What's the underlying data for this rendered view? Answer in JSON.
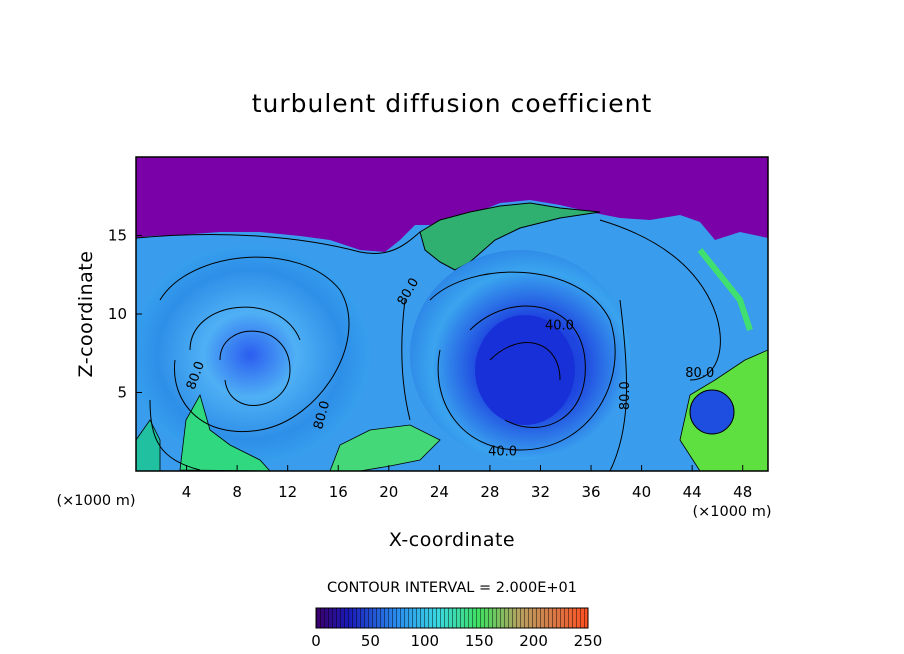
{
  "chart_data": {
    "type": "heatmap",
    "title": "turbulent diffusion coefficient",
    "xlabel": "X-coordinate",
    "ylabel": "Z-coordinate",
    "x_unit": "(×1000 m)",
    "y_unit": "(×1000 m)",
    "x_ticks": [
      "4",
      "8",
      "12",
      "16",
      "20",
      "24",
      "28",
      "32",
      "36",
      "40",
      "44",
      "48"
    ],
    "y_ticks": [
      "5",
      "10",
      "15"
    ],
    "xlim": [
      0,
      50
    ],
    "ylim": [
      0,
      20
    ],
    "contour_interval_text": "CONTOUR INTERVAL = 2.000E+01",
    "contour_labels": [
      {
        "text": "80.0",
        "x": 5.0,
        "z": 6.0,
        "rotate": -70
      },
      {
        "text": "80.0",
        "x": 15.0,
        "z": 3.5,
        "rotate": -75
      },
      {
        "text": "80.0",
        "x": 21.8,
        "z": 11.3,
        "rotate": -60
      },
      {
        "text": "40.0",
        "x": 33.5,
        "z": 9.0,
        "rotate": 0
      },
      {
        "text": "80.0",
        "x": 39.0,
        "z": 4.8,
        "rotate": -90
      },
      {
        "text": "80.0",
        "x": 44.6,
        "z": 6.0,
        "rotate": 0
      },
      {
        "text": "40.0",
        "x": 29.0,
        "z": 1.0,
        "rotate": 0
      }
    ],
    "colorbar": {
      "ticks": [
        "0",
        "50",
        "100",
        "150",
        "200",
        "250"
      ],
      "range": [
        0,
        250
      ]
    },
    "colors": {
      "background_region": "#7a00a8",
      "low": "#1a2ad8",
      "mid": "#38a8f0",
      "high": "#30e060"
    }
  }
}
